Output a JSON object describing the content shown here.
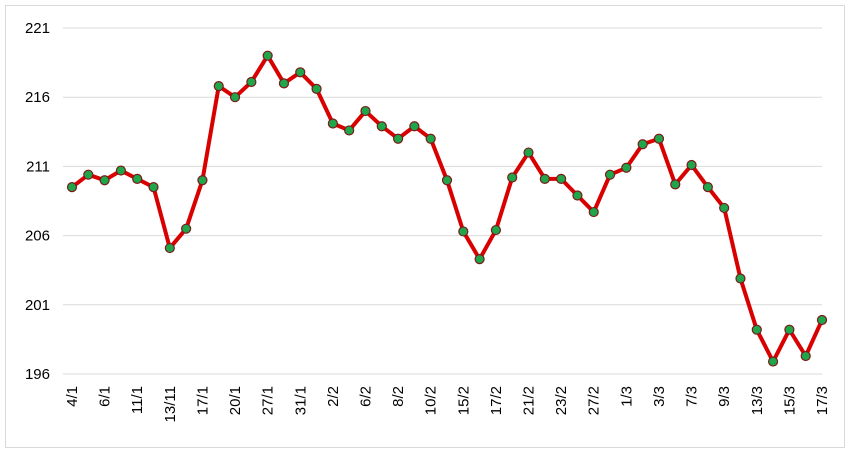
{
  "chart_data": {
    "type": "line",
    "title": "",
    "xlabel": "",
    "ylabel": "",
    "ylim": [
      196,
      221
    ],
    "y_ticks": [
      196,
      201,
      206,
      211,
      216,
      221
    ],
    "grid": "horizontal",
    "legend": "none",
    "line_color": "#d90000",
    "marker_fill": "#1fa64a",
    "marker_edge": "#7a1a1a",
    "x_labels_visible": [
      "4/1",
      "6/1",
      "11/1",
      "13/11",
      "17/1",
      "20/1",
      "27/1",
      "31/1",
      "2/2",
      "6/2",
      "8/2",
      "10/2",
      "15/2",
      "17/2",
      "21/2",
      "23/2",
      "27/2",
      "1/3",
      "3/3",
      "7/3",
      "9/3",
      "13/3",
      "15/3",
      "17/3"
    ],
    "values": [
      209.5,
      210.4,
      210.0,
      210.7,
      210.1,
      209.5,
      205.1,
      206.5,
      210.0,
      216.8,
      216.0,
      217.1,
      219.0,
      217.0,
      217.8,
      216.6,
      214.1,
      213.6,
      215.0,
      213.9,
      213.0,
      213.9,
      213.0,
      210.0,
      206.3,
      204.3,
      206.4,
      210.2,
      212.0,
      210.1,
      210.1,
      208.9,
      207.7,
      210.4,
      210.9,
      212.6,
      213.0,
      209.7,
      211.1,
      209.5,
      208.0,
      202.9,
      199.2,
      196.9,
      199.2,
      197.3,
      199.9
    ]
  }
}
